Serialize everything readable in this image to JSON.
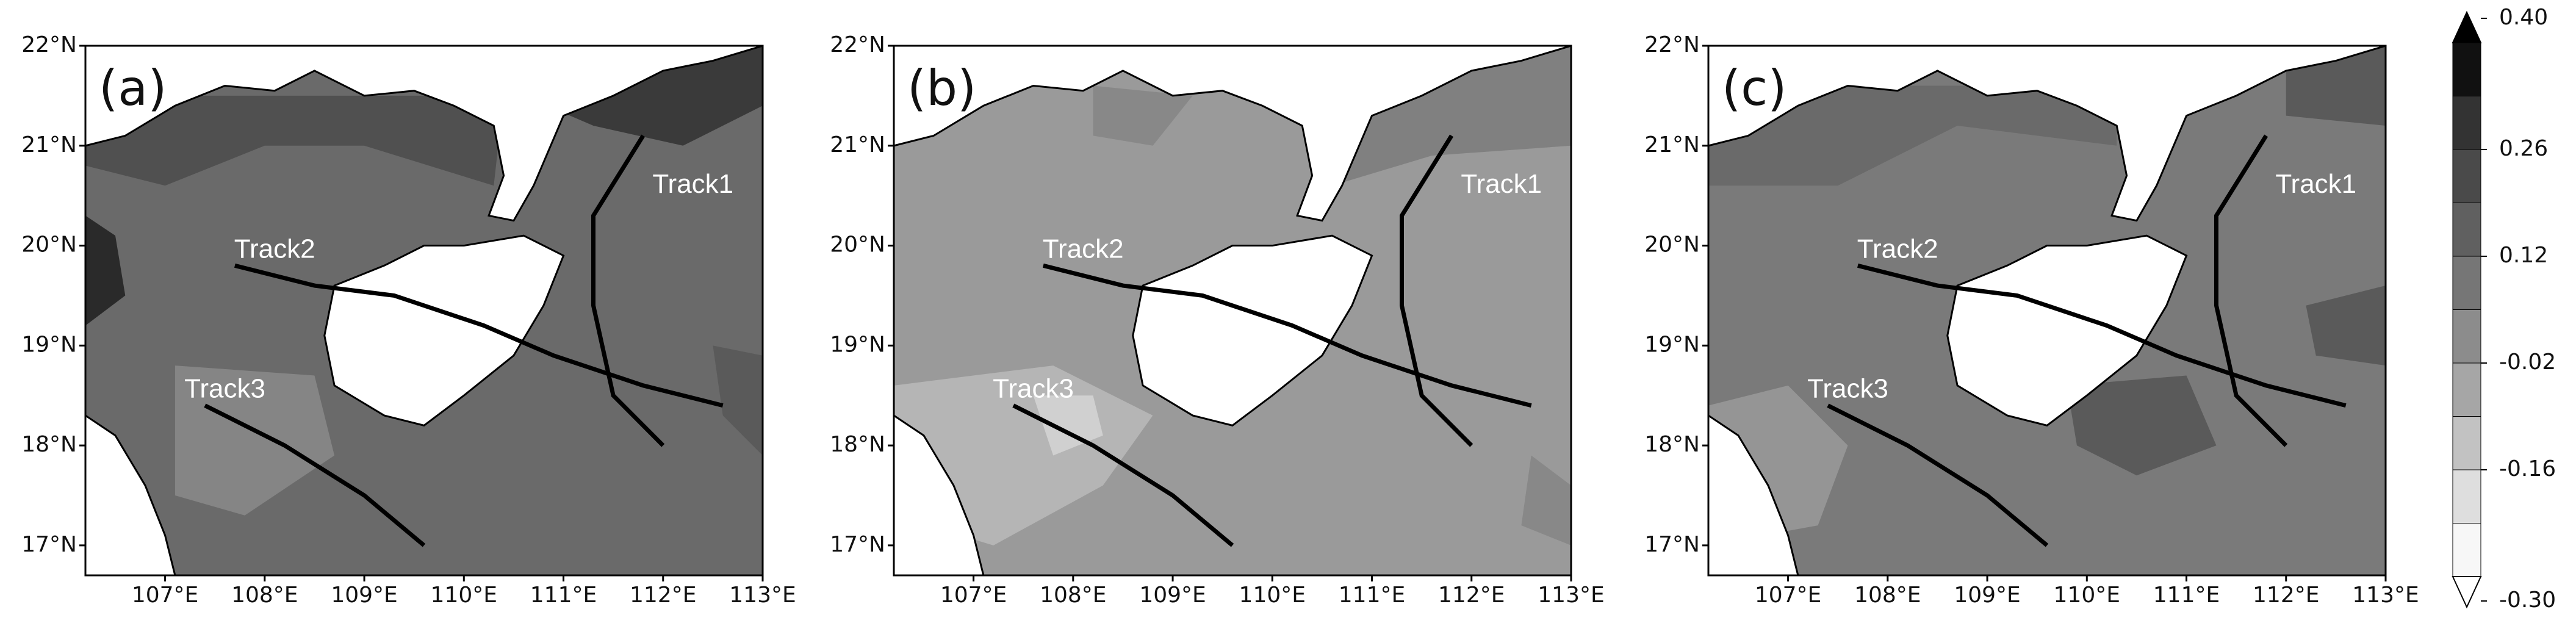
{
  "panels": [
    {
      "label": "(a)",
      "tracks": [
        "Track1",
        "Track2",
        "Track3"
      ]
    },
    {
      "label": "(b)",
      "tracks": [
        "Track1",
        "Track2",
        "Track3"
      ]
    },
    {
      "label": "(c)",
      "tracks": [
        "Track1",
        "Track2",
        "Track3"
      ]
    }
  ],
  "x_ticks": [
    "107°E",
    "108°E",
    "109°E",
    "110°E",
    "111°E",
    "112°E",
    "113°E"
  ],
  "y_ticks": [
    "22°N",
    "21°N",
    "20°N",
    "19°N",
    "18°N",
    "17°N"
  ],
  "colorbar": {
    "labels": [
      "0.40",
      "0.26",
      "0.12",
      "-0.02",
      "-0.16",
      "-0.30"
    ]
  }
}
